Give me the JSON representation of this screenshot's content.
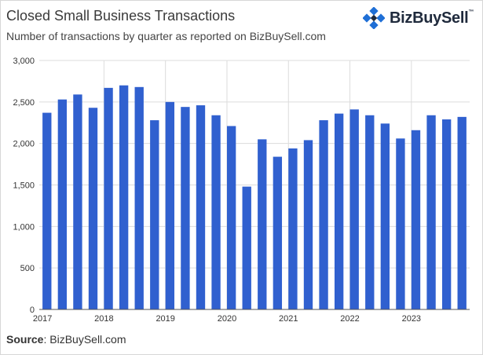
{
  "header": {
    "title": "Closed Small Business Transactions",
    "subtitle": "Number of transactions by quarter as reported on BizBuySell.com"
  },
  "logo": {
    "text": "BizBuySell",
    "tm": "™",
    "icon": "bizbuysell-logo-icon",
    "color": "#1f6fd6"
  },
  "footer": {
    "source_label": "Source",
    "source_text": ": BizBuySell.com"
  },
  "chart_data": {
    "type": "bar",
    "title": "Closed Small Business Transactions",
    "subtitle": "Number of transactions by quarter as reported on BizBuySell.com",
    "xlabel": "",
    "ylabel": "",
    "ylim": [
      0,
      3000
    ],
    "yticks": [
      0,
      500,
      1000,
      1500,
      2000,
      2500,
      3000
    ],
    "ytick_labels": [
      "0",
      "500",
      "1,000",
      "1,500",
      "2,000",
      "2,500",
      "3,000"
    ],
    "year_labels": [
      "2017",
      "2018",
      "2019",
      "2020",
      "2021",
      "2022",
      "2023"
    ],
    "categories": [
      "2017 Q1",
      "2017 Q2",
      "2017 Q3",
      "2017 Q4",
      "2018 Q1",
      "2018 Q2",
      "2018 Q3",
      "2018 Q4",
      "2019 Q1",
      "2019 Q2",
      "2019 Q3",
      "2019 Q4",
      "2020 Q1",
      "2020 Q2",
      "2020 Q3",
      "2020 Q4",
      "2021 Q1",
      "2021 Q2",
      "2021 Q3",
      "2021 Q4",
      "2022 Q1",
      "2022 Q2",
      "2022 Q3",
      "2022 Q4",
      "2023 Q1",
      "2023 Q2",
      "2023 Q3",
      "2023 Q4"
    ],
    "values": [
      2370,
      2530,
      2590,
      2430,
      2670,
      2700,
      2680,
      2280,
      2500,
      2440,
      2460,
      2340,
      2210,
      1480,
      2050,
      1840,
      1940,
      2040,
      2280,
      2360,
      2410,
      2340,
      2240,
      2060,
      2160,
      2340,
      2290,
      2320
    ],
    "bar_color": "#3060cf",
    "grid": true
  }
}
